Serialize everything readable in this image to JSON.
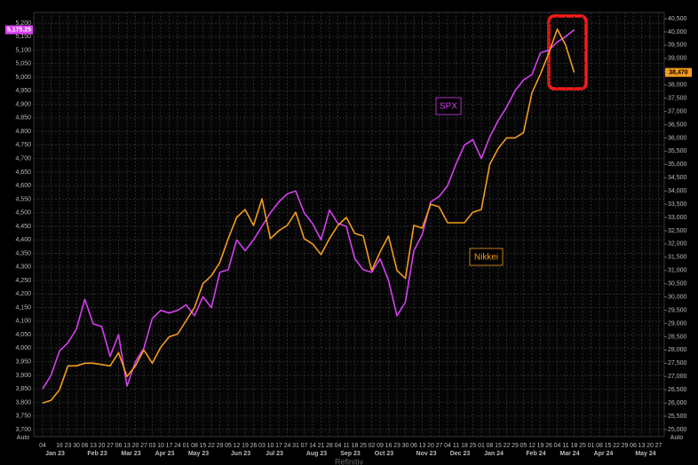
{
  "chart_data": {
    "type": "line",
    "source": "Refinitiv",
    "auto_label": "Auto",
    "categories": [
      "04",
      null,
      "16",
      "23",
      "30",
      "06",
      "13",
      "20",
      "27",
      "06",
      "13",
      "20",
      "27",
      "03",
      "10",
      "17",
      "24",
      "01",
      "08",
      "15",
      "22",
      "29",
      "05",
      "12",
      "19",
      "26",
      "03",
      "10",
      "17",
      "24",
      "31",
      "07",
      "14",
      "21",
      "28",
      "04",
      "11",
      "18",
      "25",
      "02",
      "09",
      "16",
      "23",
      "30",
      "06",
      "13",
      "20",
      "27",
      "04",
      "11",
      "18",
      "25",
      "01",
      "08",
      "15",
      "22",
      "29",
      "05",
      "12",
      "19",
      "26",
      "04",
      "11",
      "18",
      "25",
      "01",
      "08",
      "15",
      "22",
      "29",
      "06",
      "13",
      "20",
      "27"
    ],
    "months": [
      {
        "label": "Jan 23",
        "at": 0
      },
      {
        "label": "Feb 23",
        "at": 5
      },
      {
        "label": "Mar 23",
        "at": 9
      },
      {
        "label": "Apr 23",
        "at": 13
      },
      {
        "label": "May 23",
        "at": 17
      },
      {
        "label": "Jun 23",
        "at": 22
      },
      {
        "label": "Jul 23",
        "at": 26
      },
      {
        "label": "Aug 23",
        "at": 31
      },
      {
        "label": "Sep 23",
        "at": 35
      },
      {
        "label": "Oct 23",
        "at": 39
      },
      {
        "label": "Nov 23",
        "at": 44
      },
      {
        "label": "Dec 23",
        "at": 48
      },
      {
        "label": "Jan 24",
        "at": 52
      },
      {
        "label": "Feb 24",
        "at": 57
      },
      {
        "label": "Mar 24",
        "at": 61
      },
      {
        "label": "Apr 24",
        "at": 65
      },
      {
        "label": "May 24",
        "at": 70
      }
    ],
    "series": [
      {
        "name": "SPX",
        "color": "#d63ff0",
        "axis": "y",
        "values": [
          3850,
          3900,
          3990,
          4020,
          4070,
          4180,
          4090,
          4080,
          3970,
          4050,
          3860,
          3950,
          4000,
          4110,
          4140,
          4130,
          4140,
          4160,
          4120,
          4190,
          4150,
          4280,
          4290,
          4400,
          4360,
          4400,
          4450,
          4500,
          4540,
          4570,
          4580,
          4500,
          4460,
          4400,
          4510,
          4460,
          4450,
          4330,
          4290,
          4280,
          4330,
          4250,
          4120,
          4170,
          4360,
          4420,
          4540,
          4560,
          4600,
          4680,
          4750,
          4770,
          4700,
          4780,
          4840,
          4890,
          4950,
          4990,
          5010,
          5090,
          5100,
          5130,
          5150,
          5175.25,
          null,
          null,
          null,
          null,
          null,
          null,
          null,
          null,
          null,
          null
        ],
        "last_label": "5,175.25"
      },
      {
        "name": "Nikkei",
        "color": "#f39c1e",
        "axis": "y2",
        "values": [
          26000,
          26100,
          26500,
          27400,
          27400,
          27500,
          27500,
          27450,
          27400,
          27900,
          27000,
          27400,
          28000,
          27500,
          28100,
          28500,
          28600,
          29100,
          29600,
          30500,
          30800,
          31300,
          32200,
          33000,
          33300,
          32700,
          33700,
          32200,
          32500,
          32700,
          33200,
          32200,
          32000,
          31600,
          32200,
          32700,
          33000,
          32400,
          32300,
          31000,
          31700,
          32300,
          31000,
          30700,
          32700,
          32600,
          33500,
          33400,
          32800,
          32800,
          32800,
          33200,
          33300,
          35000,
          35600,
          36000,
          36000,
          36200,
          37700,
          38400,
          39200,
          40100,
          39500,
          38470,
          null,
          null,
          null,
          null,
          null,
          null,
          null,
          null,
          null,
          null
        ],
        "last_label": "38,470"
      }
    ],
    "ylim": [
      3700,
      5200
    ],
    "yticks": [
      {
        "value": 3700,
        "label": "3,700"
      },
      {
        "value": 3750,
        "label": "3,750"
      },
      {
        "value": 3800,
        "label": "3,800"
      },
      {
        "value": 3850,
        "label": "3,850"
      },
      {
        "value": 3900,
        "label": "3,900"
      },
      {
        "value": 3950,
        "label": "3,950"
      },
      {
        "value": 4000,
        "label": "4,000"
      },
      {
        "value": 4050,
        "label": "4,050"
      },
      {
        "value": 4100,
        "label": "4,100"
      },
      {
        "value": 4150,
        "label": "4,150"
      },
      {
        "value": 4200,
        "label": "4,200"
      },
      {
        "value": 4250,
        "label": "4,250"
      },
      {
        "value": 4300,
        "label": "4,300"
      },
      {
        "value": 4350,
        "label": "4,350"
      },
      {
        "value": 4400,
        "label": "4,400"
      },
      {
        "value": 4450,
        "label": "4,450"
      },
      {
        "value": 4500,
        "label": "4,500"
      },
      {
        "value": 4550,
        "label": "4,550"
      },
      {
        "value": 4600,
        "label": "4,600"
      },
      {
        "value": 4650,
        "label": "4,650"
      },
      {
        "value": 4700,
        "label": "4,700"
      },
      {
        "value": 4750,
        "label": "4,750"
      },
      {
        "value": 4800,
        "label": "4,800"
      },
      {
        "value": 4850,
        "label": "4,850"
      },
      {
        "value": 4900,
        "label": "4,900"
      },
      {
        "value": 4950,
        "label": "4,950"
      },
      {
        "value": 5000,
        "label": "5,000"
      },
      {
        "value": 5050,
        "label": "5,050"
      },
      {
        "value": 5100,
        "label": "5,100"
      },
      {
        "value": 5150,
        "label": "5,150"
      },
      {
        "value": 5200,
        "label": "5,200"
      }
    ],
    "y2lim": [
      25000,
      40500
    ],
    "y2ticks": [
      {
        "value": 25000,
        "label": "25,000"
      },
      {
        "value": 25500,
        "label": "25,500"
      },
      {
        "value": 26000,
        "label": "26,000"
      },
      {
        "value": 26500,
        "label": "26,500"
      },
      {
        "value": 27000,
        "label": "27,000"
      },
      {
        "value": 27500,
        "label": "27,500"
      },
      {
        "value": 28000,
        "label": "28,000"
      },
      {
        "value": 28500,
        "label": "28,500"
      },
      {
        "value": 29000,
        "label": "29,000"
      },
      {
        "value": 29500,
        "label": "29,500"
      },
      {
        "value": 30000,
        "label": "30,000"
      },
      {
        "value": 30500,
        "label": "30,500"
      },
      {
        "value": 31000,
        "label": "31,000"
      },
      {
        "value": 31500,
        "label": "31,500"
      },
      {
        "value": 32000,
        "label": "32,000"
      },
      {
        "value": 32500,
        "label": "32,500"
      },
      {
        "value": 33000,
        "label": "33,000"
      },
      {
        "value": 33500,
        "label": "33,500"
      },
      {
        "value": 34000,
        "label": "34,000"
      },
      {
        "value": 34500,
        "label": "34,500"
      },
      {
        "value": 35000,
        "label": "35,000"
      },
      {
        "value": 35500,
        "label": "35,500"
      },
      {
        "value": 36000,
        "label": "36,000"
      },
      {
        "value": 36500,
        "label": "36,500"
      },
      {
        "value": 37000,
        "label": "37,000"
      },
      {
        "value": 37500,
        "label": "37,500"
      },
      {
        "value": 38000,
        "label": "38,000"
      },
      {
        "value": 38500,
        "label": "38,500"
      },
      {
        "value": 39000,
        "label": "39,000"
      },
      {
        "value": 39500,
        "label": "39,500"
      },
      {
        "value": 40000,
        "label": "40,000"
      },
      {
        "value": 40500,
        "label": "40,500"
      }
    ],
    "grid": true
  }
}
